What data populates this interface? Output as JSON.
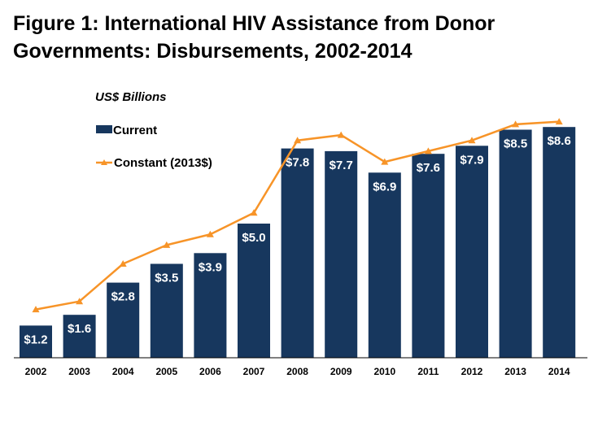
{
  "title_lines": [
    "Figure 1: International HIV Assistance from Donor",
    "Governments: Disbursements, 2002-2014"
  ],
  "colors": {
    "bar": "#17375e",
    "line": "#f79428",
    "label": "#ffffff"
  },
  "chart_data": {
    "type": "bar",
    "title": "Figure 1: International HIV Assistance from Donor Governments: Disbursements, 2002-2014",
    "unit_label": "US$ Billions",
    "categories": [
      "2002",
      "2003",
      "2004",
      "2005",
      "2006",
      "2007",
      "2008",
      "2009",
      "2010",
      "2011",
      "2012",
      "2013",
      "2014"
    ],
    "ylim": [
      0,
      9.0
    ],
    "legend_position": "top-left",
    "series": [
      {
        "name": "Current",
        "kind": "bar",
        "values": [
          1.2,
          1.6,
          2.8,
          3.5,
          3.9,
          5.0,
          7.8,
          7.7,
          6.9,
          7.6,
          7.9,
          8.5,
          8.6
        ],
        "labels": [
          "$1.2",
          "$1.6",
          "$2.8",
          "$3.5",
          "$3.9",
          "$5.0",
          "$7.8",
          "$7.7",
          "$6.9",
          "$7.6",
          "$7.9",
          "$8.5",
          "$8.6"
        ]
      },
      {
        "name": "Constant (2013$)",
        "kind": "line",
        "values": [
          1.8,
          2.1,
          3.5,
          4.2,
          4.6,
          5.4,
          8.1,
          8.3,
          7.3,
          7.7,
          8.1,
          8.7,
          8.8
        ]
      }
    ]
  }
}
